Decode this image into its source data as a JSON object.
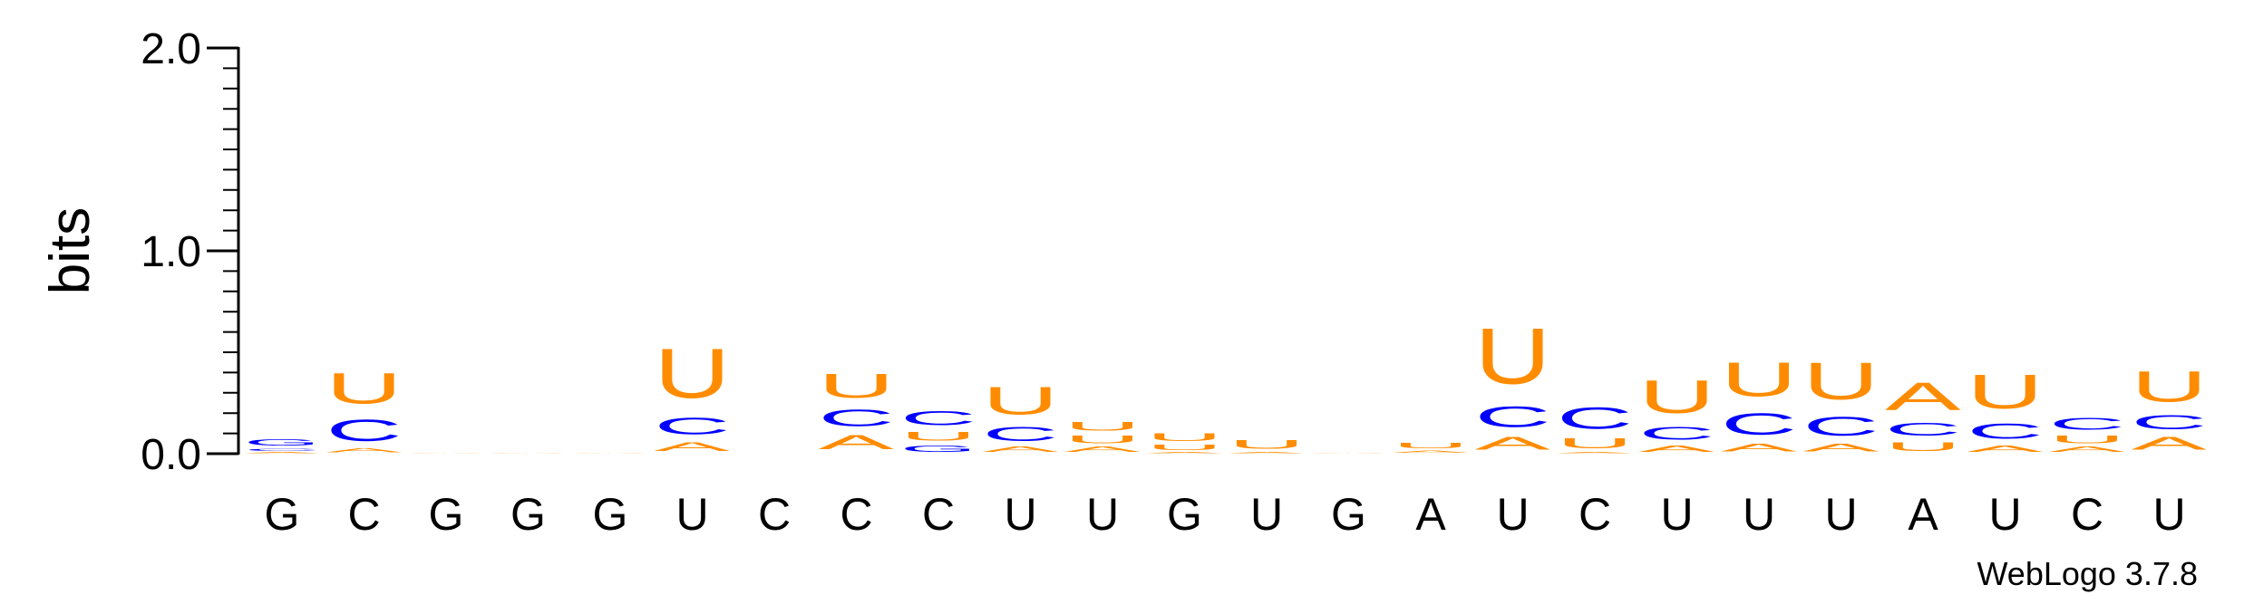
{
  "chart_data": {
    "type": "sequence-logo",
    "ylabel": "bits",
    "ylim": [
      0,
      2.0
    ],
    "yticks": [
      "0.0",
      "1.0",
      "2.0"
    ],
    "colors": {
      "A": "#ff8c00",
      "U": "#ff8c00",
      "C": "#0000ff",
      "G": "#0000ff"
    },
    "credit": "WebLogo 3.7.8",
    "positions": [
      {
        "label": "G",
        "stack": [
          {
            "letter": "A",
            "bits": 0.01
          },
          {
            "letter": "C",
            "bits": 0.02
          },
          {
            "letter": "G",
            "bits": 0.05
          }
        ]
      },
      {
        "label": "C",
        "stack": [
          {
            "letter": "A",
            "bits": 0.03
          },
          {
            "letter": "C",
            "bits": 0.17
          },
          {
            "letter": "U",
            "bits": 0.24
          }
        ]
      },
      {
        "label": "G",
        "stack": [
          {
            "letter": "A",
            "bits": 0.005
          }
        ]
      },
      {
        "label": "G",
        "stack": [
          {
            "letter": "A",
            "bits": 0.005
          }
        ]
      },
      {
        "label": "G",
        "stack": [
          {
            "letter": "A",
            "bits": 0.005
          }
        ]
      },
      {
        "label": "U",
        "stack": [
          {
            "letter": "A",
            "bits": 0.07
          },
          {
            "letter": "C",
            "bits": 0.13
          },
          {
            "letter": "U",
            "bits": 0.39
          }
        ]
      },
      {
        "label": "C",
        "stack": []
      },
      {
        "label": "C",
        "stack": [
          {
            "letter": "A",
            "bits": 0.11
          },
          {
            "letter": "C",
            "bits": 0.13
          },
          {
            "letter": "U",
            "bits": 0.19
          }
        ]
      },
      {
        "label": "C",
        "stack": [
          {
            "letter": "G",
            "bits": 0.05
          },
          {
            "letter": "U",
            "bits": 0.07
          },
          {
            "letter": "C",
            "bits": 0.11
          }
        ]
      },
      {
        "label": "U",
        "stack": [
          {
            "letter": "A",
            "bits": 0.04
          },
          {
            "letter": "C",
            "bits": 0.11
          },
          {
            "letter": "U",
            "bits": 0.22
          }
        ]
      },
      {
        "label": "U",
        "stack": [
          {
            "letter": "A",
            "bits": 0.04
          },
          {
            "letter": "U",
            "bits": 0.06
          },
          {
            "letter": "U",
            "bits": 0.07
          }
        ]
      },
      {
        "label": "G",
        "stack": [
          {
            "letter": "A",
            "bits": 0.01
          },
          {
            "letter": "U",
            "bits": 0.04
          },
          {
            "letter": "U",
            "bits": 0.06
          }
        ]
      },
      {
        "label": "U",
        "stack": [
          {
            "letter": "A",
            "bits": 0.01
          },
          {
            "letter": "U",
            "bits": 0.07
          }
        ]
      },
      {
        "label": "G",
        "stack": [
          {
            "letter": "A",
            "bits": 0.005
          }
        ]
      },
      {
        "label": "A",
        "stack": [
          {
            "letter": "A",
            "bits": 0.02
          },
          {
            "letter": "U",
            "bits": 0.04
          }
        ]
      },
      {
        "label": "U",
        "stack": [
          {
            "letter": "A",
            "bits": 0.1
          },
          {
            "letter": "C",
            "bits": 0.16
          },
          {
            "letter": "U",
            "bits": 0.44
          }
        ]
      },
      {
        "label": "C",
        "stack": [
          {
            "letter": "A",
            "bits": 0.01
          },
          {
            "letter": "U",
            "bits": 0.08
          },
          {
            "letter": "C",
            "bits": 0.17
          }
        ]
      },
      {
        "label": "U",
        "stack": [
          {
            "letter": "A",
            "bits": 0.05
          },
          {
            "letter": "C",
            "bits": 0.1
          },
          {
            "letter": "U",
            "bits": 0.26
          }
        ]
      },
      {
        "label": "U",
        "stack": [
          {
            "letter": "A",
            "bits": 0.06
          },
          {
            "letter": "C",
            "bits": 0.17
          },
          {
            "letter": "U",
            "bits": 0.27
          }
        ]
      },
      {
        "label": "U",
        "stack": [
          {
            "letter": "A",
            "bits": 0.06
          },
          {
            "letter": "C",
            "bits": 0.15
          },
          {
            "letter": "U",
            "bits": 0.29
          }
        ]
      },
      {
        "label": "A",
        "stack": [
          {
            "letter": "U",
            "bits": 0.07
          },
          {
            "letter": "C",
            "bits": 0.1
          },
          {
            "letter": "A",
            "bits": 0.22
          }
        ]
      },
      {
        "label": "U",
        "stack": [
          {
            "letter": "A",
            "bits": 0.05
          },
          {
            "letter": "C",
            "bits": 0.12
          },
          {
            "letter": "U",
            "bits": 0.27
          }
        ]
      },
      {
        "label": "C",
        "stack": [
          {
            "letter": "A",
            "bits": 0.04
          },
          {
            "letter": "U",
            "bits": 0.06
          },
          {
            "letter": "C",
            "bits": 0.09
          }
        ]
      },
      {
        "label": "U",
        "stack": [
          {
            "letter": "A",
            "bits": 0.1
          },
          {
            "letter": "C",
            "bits": 0.11
          },
          {
            "letter": "U",
            "bits": 0.24
          }
        ]
      }
    ]
  }
}
